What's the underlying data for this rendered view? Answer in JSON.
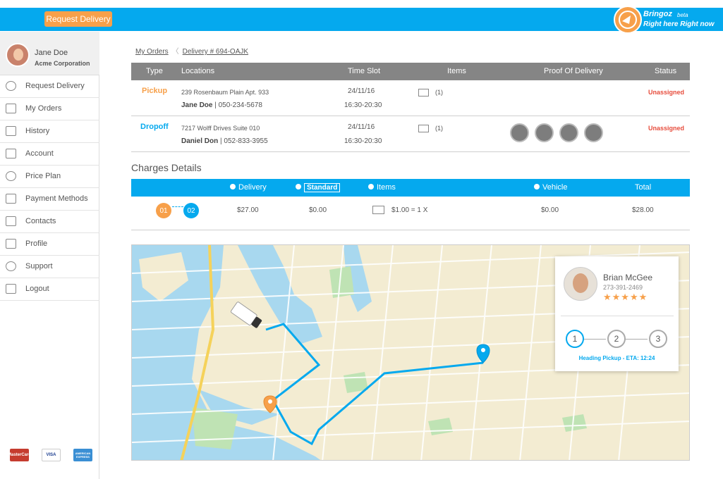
{
  "header": {
    "request_button": "Request Delivery",
    "brand_name": "Bringoz",
    "brand_beta": "beta",
    "brand_tagline": "Right here Right now"
  },
  "user": {
    "name": "Jane Doe",
    "company": "Acme Corporation"
  },
  "sidebar": {
    "items": [
      {
        "label": "Request Delivery",
        "icon": "plus-circle-icon"
      },
      {
        "label": "My Orders",
        "icon": "box-icon"
      },
      {
        "label": "History",
        "icon": "history-icon"
      },
      {
        "label": "Account",
        "icon": "wallet-icon"
      },
      {
        "label": "Price Plan",
        "icon": "dollar-icon"
      },
      {
        "label": "Payment Methods",
        "icon": "credit-card-icon"
      },
      {
        "label": "Contacts",
        "icon": "contacts-icon"
      },
      {
        "label": "Profile",
        "icon": "profile-icon"
      },
      {
        "label": "Support",
        "icon": "headset-icon"
      },
      {
        "label": "Logout",
        "icon": "logout-icon"
      }
    ],
    "cards": [
      "MasterCard",
      "VISA",
      "AMERICAN EXPRESS"
    ]
  },
  "breadcrumb": {
    "root": "My Orders",
    "current": "Delivery # 694-OAJK"
  },
  "orders": {
    "columns": [
      "Type",
      "Locations",
      "Time Slot",
      "Items",
      "Proof Of Delivery",
      "Status"
    ],
    "rows": [
      {
        "type": "Pickup",
        "address": "239 Rosenbaum Plain Apt. 933",
        "contact_name": "Jane Doe",
        "contact_phone": "050-234-5678",
        "date": "24/11/16",
        "time": "16:30-20:30",
        "items": "(1)",
        "status": "Unassigned"
      },
      {
        "type": "Dropoff",
        "address": "7217 Wolff Drives Suite 010",
        "contact_name": "Daniel Don",
        "contact_phone": "052-833-3955",
        "date": "24/11/16",
        "time": "16:30-20:30",
        "items": "(1)",
        "status": "Unassigned",
        "proof_icons": [
          "id-card-icon",
          "person-icon",
          "glasses-icon",
          "signature-icon"
        ]
      }
    ]
  },
  "charges": {
    "title": "Charges Details",
    "columns": {
      "delivery": "Delivery",
      "standard": "Standard",
      "items": "Items",
      "vehicle": "Vehicle",
      "total": "Total"
    },
    "steps": [
      "01",
      "02"
    ],
    "delivery": "$27.00",
    "standard": "$0.00",
    "items": "$1.00 = 1 X",
    "vehicle": "$0.00",
    "total": "$28.00"
  },
  "driver": {
    "name": "Brian McGee",
    "phone": "273-391-2469",
    "rating": 5,
    "stars": "★★★★★",
    "steps": [
      "1",
      "2",
      "3"
    ],
    "active_step": 1,
    "status": "Heading Pickup - ETA: 12:24"
  },
  "colors": {
    "primary": "#05a9ee",
    "accent": "#f7a04a",
    "status_red": "#e74c3c",
    "header_gray": "#858585"
  }
}
